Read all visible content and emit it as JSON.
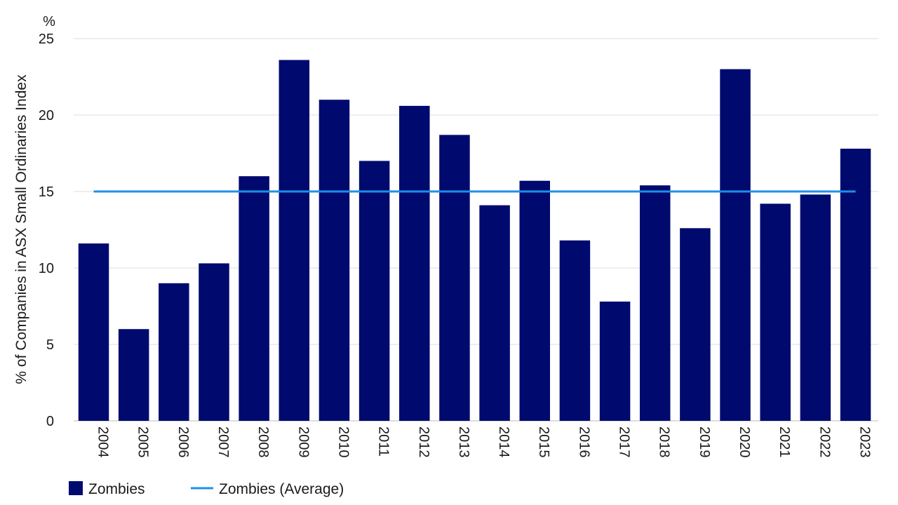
{
  "chart_data": {
    "type": "bar",
    "unit_label": "%",
    "ylabel": "% of Companies in ASX Small Ordinaries Index",
    "xlabel": "",
    "ylim": [
      0,
      25
    ],
    "yticks": [
      0,
      5,
      10,
      15,
      20,
      25
    ],
    "grid": true,
    "legend_position": "bottom-left",
    "categories": [
      "2004",
      "2005",
      "2006",
      "2007",
      "2008",
      "2009",
      "2010",
      "2011",
      "2012",
      "2013",
      "2014",
      "2015",
      "2016",
      "2017",
      "2018",
      "2019",
      "2020",
      "2021",
      "2022",
      "2023"
    ],
    "series": [
      {
        "name": "Zombies",
        "type": "bar",
        "color": "#000a6e",
        "values": [
          11.6,
          6.0,
          9.0,
          10.3,
          16.0,
          23.6,
          21.0,
          17.0,
          20.6,
          18.7,
          14.1,
          15.7,
          11.8,
          7.8,
          15.4,
          12.6,
          23.0,
          14.2,
          14.8,
          17.8
        ]
      },
      {
        "name": "Zombies (Average)",
        "type": "line",
        "color": "#1e90e8",
        "values": [
          15.0,
          15.0,
          15.0,
          15.0,
          15.0,
          15.0,
          15.0,
          15.0,
          15.0,
          15.0,
          15.0,
          15.0,
          15.0,
          15.0,
          15.0,
          15.0,
          15.0,
          15.0,
          15.0,
          15.0
        ]
      }
    ]
  }
}
